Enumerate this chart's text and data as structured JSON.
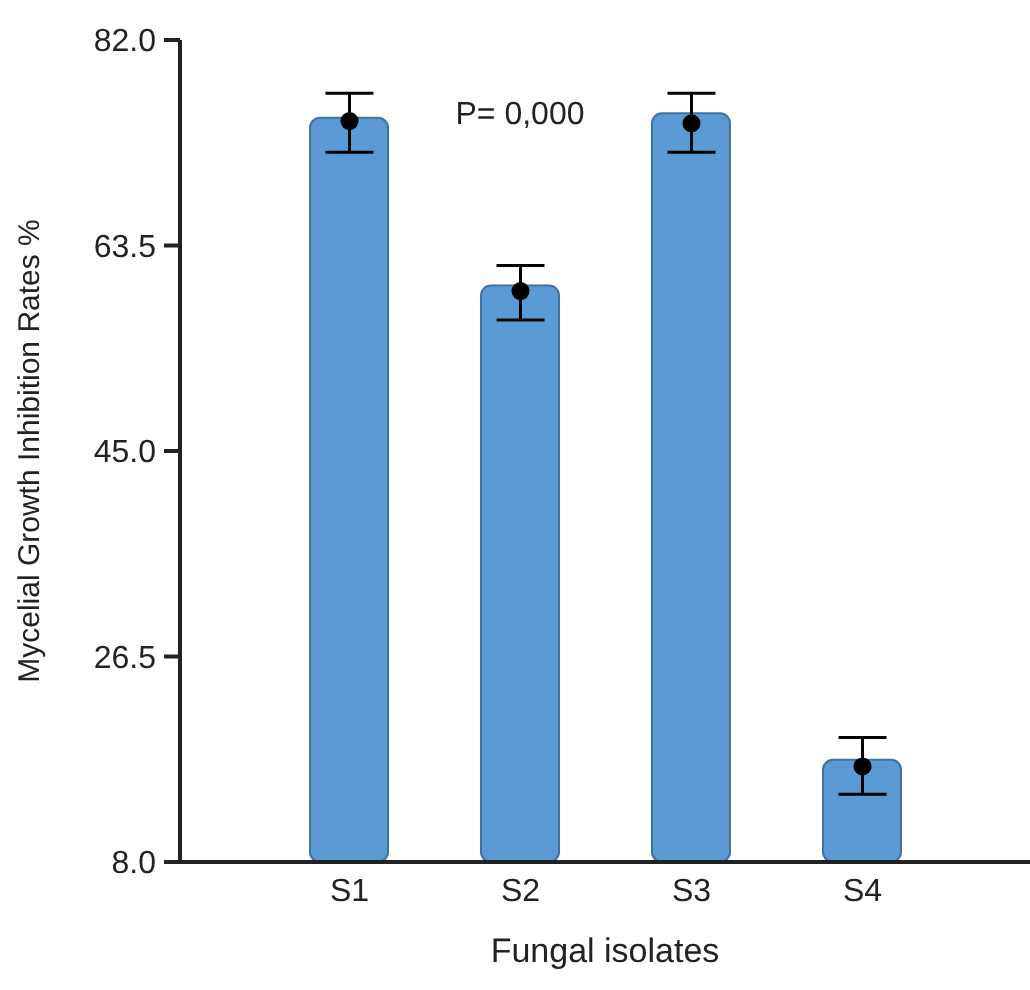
{
  "chart_data": {
    "type": "bar",
    "xlabel": "Fungal isolates",
    "ylabel": "Mycelial Growth Inhibition Rates  %",
    "categories": [
      "S1",
      "S2",
      "S3",
      "S4"
    ],
    "series": [
      {
        "color": "#5b9bd5",
        "values": [
          75.0,
          59.9,
          75.4,
          17.2
        ]
      },
      {
        "type": "scatter",
        "color": "#000000",
        "x": [
          "S1",
          "S2",
          "S3",
          "S4"
        ],
        "values": [
          74.7,
          59.4,
          74.5,
          16.6
        ],
        "errors": [
          [
            71.9,
            77.2
          ],
          [
            56.8,
            61.7
          ],
          [
            71.9,
            77.2
          ],
          [
            14.1,
            19.2
          ]
        ],
        "marker": "circle"
      }
    ],
    "ylim": [
      8,
      82
    ],
    "yticks": [
      {
        "value": 8,
        "label": "8.0"
      },
      {
        "value": 26.5,
        "label": "26.5"
      },
      {
        "value": 45,
        "label": "45.0"
      },
      {
        "value": 63.5,
        "label": "63.5"
      },
      {
        "value": 82,
        "label": "82.0"
      }
    ],
    "annotations": [
      "P= 0,000"
    ],
    "grid": false,
    "legend": false
  }
}
